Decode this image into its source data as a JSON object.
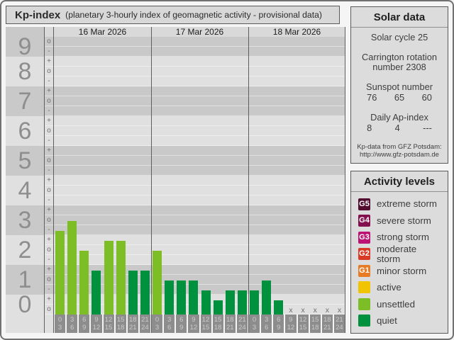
{
  "title_bar": {
    "title": "Kp-index",
    "subtitle": "(planetary 3-hourly index of geomagnetic activity - provisional data)"
  },
  "chart_data": {
    "type": "bar",
    "title": "Kp-index (planetary 3-hourly index of geomagnetic activity - provisional data)",
    "ylabel": "Kp",
    "ylim": [
      0,
      9.33
    ],
    "grid": true,
    "no_data_marker": "x",
    "y_axis": [
      {
        "label": "9",
        "ticks": [
          "o",
          "-"
        ],
        "band": "dark"
      },
      {
        "label": "8",
        "ticks": [
          "+",
          "o",
          "-"
        ],
        "band": "light"
      },
      {
        "label": "7",
        "ticks": [
          "+",
          "o",
          "-"
        ],
        "band": "dark"
      },
      {
        "label": "6",
        "ticks": [
          "+",
          "o",
          "-"
        ],
        "band": "light"
      },
      {
        "label": "5",
        "ticks": [
          "+",
          "o",
          "-"
        ],
        "band": "dark"
      },
      {
        "label": "4",
        "ticks": [
          "+",
          "o",
          "-"
        ],
        "band": "light"
      },
      {
        "label": "3",
        "ticks": [
          "+",
          "o",
          "-"
        ],
        "band": "dark"
      },
      {
        "label": "2",
        "ticks": [
          "+",
          "o",
          "-"
        ],
        "band": "light"
      },
      {
        "label": "1",
        "ticks": [
          "+",
          "o",
          "-"
        ],
        "band": "dark"
      },
      {
        "label": "0",
        "ticks": [
          "+",
          "o"
        ],
        "band": "light"
      }
    ],
    "level_colors": {
      "unsettled": "#7dbe27",
      "quiet": "#00913e"
    },
    "days": [
      {
        "date": "16 Mar 2026",
        "bins": [
          {
            "hours": [
              "0",
              "3"
            ],
            "kp": "3-",
            "thirds": 8,
            "level": "unsettled"
          },
          {
            "hours": [
              "3",
              "6"
            ],
            "kp": "3o",
            "thirds": 9,
            "level": "unsettled"
          },
          {
            "hours": [
              "6",
              "9"
            ],
            "kp": "2o",
            "thirds": 6,
            "level": "unsettled"
          },
          {
            "hours": [
              "9",
              "12"
            ],
            "kp": "1+",
            "thirds": 4,
            "level": "quiet"
          },
          {
            "hours": [
              "12",
              "15"
            ],
            "kp": "2+",
            "thirds": 7,
            "level": "unsettled"
          },
          {
            "hours": [
              "15",
              "18"
            ],
            "kp": "2+",
            "thirds": 7,
            "level": "unsettled"
          },
          {
            "hours": [
              "18",
              "21"
            ],
            "kp": "1+",
            "thirds": 4,
            "level": "quiet"
          },
          {
            "hours": [
              "21",
              "24"
            ],
            "kp": "1+",
            "thirds": 4,
            "level": "quiet"
          }
        ]
      },
      {
        "date": "17 Mar 2026",
        "bins": [
          {
            "hours": [
              "0",
              "3"
            ],
            "kp": "2o",
            "thirds": 6,
            "level": "unsettled"
          },
          {
            "hours": [
              "3",
              "6"
            ],
            "kp": "1o",
            "thirds": 3,
            "level": "quiet"
          },
          {
            "hours": [
              "6",
              "9"
            ],
            "kp": "1o",
            "thirds": 3,
            "level": "quiet"
          },
          {
            "hours": [
              "9",
              "12"
            ],
            "kp": "1o",
            "thirds": 3,
            "level": "quiet"
          },
          {
            "hours": [
              "12",
              "15"
            ],
            "kp": "1-",
            "thirds": 2,
            "level": "quiet"
          },
          {
            "hours": [
              "15",
              "18"
            ],
            "kp": "0+",
            "thirds": 1,
            "level": "quiet"
          },
          {
            "hours": [
              "18",
              "21"
            ],
            "kp": "1-",
            "thirds": 2,
            "level": "quiet"
          },
          {
            "hours": [
              "21",
              "24"
            ],
            "kp": "1-",
            "thirds": 2,
            "level": "quiet"
          }
        ]
      },
      {
        "date": "18 Mar 2026",
        "bins": [
          {
            "hours": [
              "0",
              "3"
            ],
            "kp": "1-",
            "thirds": 2,
            "level": "quiet"
          },
          {
            "hours": [
              "3",
              "6"
            ],
            "kp": "1o",
            "thirds": 3,
            "level": "quiet"
          },
          {
            "hours": [
              "6",
              "9"
            ],
            "kp": "0+",
            "thirds": 1,
            "level": "quiet"
          },
          {
            "hours": [
              "9",
              "12"
            ],
            "no_data": true
          },
          {
            "hours": [
              "12",
              "15"
            ],
            "no_data": true
          },
          {
            "hours": [
              "15",
              "18"
            ],
            "no_data": true
          },
          {
            "hours": [
              "18",
              "21"
            ],
            "no_data": true
          },
          {
            "hours": [
              "21",
              "24"
            ],
            "no_data": true
          }
        ]
      }
    ]
  },
  "solar_panel": {
    "header": "Solar data",
    "solar_cycle": "Solar cycle 25",
    "carrington_line1": "Carrington rotation",
    "carrington_line2": "number 2308",
    "sunspot_label": "Sunspot number",
    "sunspot_values": [
      "76",
      "65",
      "60"
    ],
    "ap_label": "Daily Ap-index",
    "ap_values": [
      "8",
      "4",
      "---"
    ],
    "credit_line1": "Kp-data from GFZ Potsdam:",
    "credit_line2": "http://www.gfz-potsdam.de"
  },
  "activity_panel": {
    "header": "Activity levels",
    "items": [
      {
        "badge": "G5",
        "color": "#530c2f",
        "label": "extreme storm"
      },
      {
        "badge": "G4",
        "color": "#83104c",
        "label": "severe storm"
      },
      {
        "badge": "G3",
        "color": "#bb1273",
        "label": "strong storm"
      },
      {
        "badge": "G2",
        "color": "#d93a26",
        "label": "moderate storm"
      },
      {
        "badge": "G1",
        "color": "#e87b25",
        "label": "minor storm"
      },
      {
        "badge": "",
        "color": "#f0c400",
        "label": "active"
      },
      {
        "badge": "",
        "color": "#7dbe27",
        "label": "unsettled"
      },
      {
        "badge": "",
        "color": "#00913e",
        "label": "quiet"
      }
    ]
  },
  "colors": {
    "band_dark": "#c9c9c9",
    "band_light": "#e0e0e0",
    "date_row_bg": "#d9d9d9",
    "axis_line": "#5f5f5f",
    "hour_box_bg": "#8d8d8d",
    "hour_box_text": "#cbcbcb",
    "page_bg": "#f5f5f5",
    "panel_bg": "#dcdcdc"
  }
}
